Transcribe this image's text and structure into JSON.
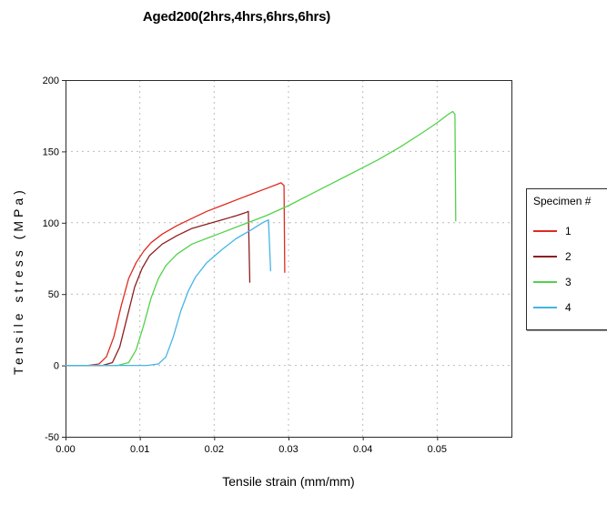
{
  "chart_data": {
    "type": "line",
    "title": "Aged200(2hrs,4hrs,6hrs,6hrs)",
    "xlabel": "Tensile strain (mm/mm)",
    "ylabel": "Tensile stress (MPa)",
    "xlim": [
      0,
      0.06
    ],
    "ylim": [
      -50,
      200
    ],
    "x_ticks": [
      0,
      0.01,
      0.02,
      0.03,
      0.04,
      0.05
    ],
    "x_tick_labels": [
      "0.00",
      "0.01",
      "0.02",
      "0.03",
      "0.04",
      "0.05"
    ],
    "y_ticks": [
      -50,
      0,
      50,
      100,
      150,
      200
    ],
    "y_tick_labels": [
      "-50",
      "0",
      "50",
      "100",
      "150",
      "200"
    ],
    "grid": true,
    "legend_title": "Specimen #",
    "legend_position": "right",
    "series": [
      {
        "name": "1",
        "color": "#df2a20",
        "points": [
          [
            0,
            0
          ],
          [
            0.003,
            0
          ],
          [
            0.0045,
            1
          ],
          [
            0.0055,
            6
          ],
          [
            0.0065,
            20
          ],
          [
            0.0075,
            42
          ],
          [
            0.0085,
            61
          ],
          [
            0.0095,
            72
          ],
          [
            0.0105,
            80
          ],
          [
            0.0115,
            86
          ],
          [
            0.013,
            92
          ],
          [
            0.015,
            98
          ],
          [
            0.017,
            103
          ],
          [
            0.019,
            108
          ],
          [
            0.021,
            112
          ],
          [
            0.023,
            116
          ],
          [
            0.025,
            120
          ],
          [
            0.027,
            124
          ],
          [
            0.0285,
            127
          ],
          [
            0.029,
            128
          ],
          [
            0.0294,
            126
          ],
          [
            0.0295,
            65
          ]
        ]
      },
      {
        "name": "2",
        "color": "#8e1f1f",
        "points": [
          [
            0,
            0
          ],
          [
            0.005,
            0
          ],
          [
            0.0063,
            2
          ],
          [
            0.0073,
            13
          ],
          [
            0.0083,
            34
          ],
          [
            0.0093,
            55
          ],
          [
            0.0103,
            68
          ],
          [
            0.0113,
            77
          ],
          [
            0.013,
            85
          ],
          [
            0.015,
            91
          ],
          [
            0.017,
            96
          ],
          [
            0.019,
            99
          ],
          [
            0.021,
            102
          ],
          [
            0.023,
            105
          ],
          [
            0.0242,
            107
          ],
          [
            0.0246,
            108
          ],
          [
            0.0248,
            58
          ]
        ]
      },
      {
        "name": "3",
        "color": "#52d24a",
        "points": [
          [
            0,
            0
          ],
          [
            0.007,
            0
          ],
          [
            0.0085,
            2
          ],
          [
            0.0095,
            11
          ],
          [
            0.0105,
            28
          ],
          [
            0.0115,
            47
          ],
          [
            0.0125,
            61
          ],
          [
            0.0135,
            70
          ],
          [
            0.015,
            78
          ],
          [
            0.017,
            85
          ],
          [
            0.019,
            89
          ],
          [
            0.021,
            93
          ],
          [
            0.024,
            99
          ],
          [
            0.027,
            105
          ],
          [
            0.03,
            112
          ],
          [
            0.033,
            120
          ],
          [
            0.036,
            128
          ],
          [
            0.039,
            136
          ],
          [
            0.042,
            144
          ],
          [
            0.045,
            153
          ],
          [
            0.048,
            163
          ],
          [
            0.05,
            170
          ],
          [
            0.0515,
            176
          ],
          [
            0.0521,
            178
          ],
          [
            0.0524,
            176
          ],
          [
            0.0525,
            101
          ]
        ]
      },
      {
        "name": "4",
        "color": "#45b5e6",
        "points": [
          [
            0,
            0
          ],
          [
            0.011,
            0
          ],
          [
            0.0125,
            1
          ],
          [
            0.0135,
            6
          ],
          [
            0.0145,
            20
          ],
          [
            0.0155,
            38
          ],
          [
            0.0165,
            52
          ],
          [
            0.0175,
            62
          ],
          [
            0.019,
            72
          ],
          [
            0.021,
            81
          ],
          [
            0.023,
            89
          ],
          [
            0.025,
            95
          ],
          [
            0.0265,
            100
          ],
          [
            0.0273,
            102
          ],
          [
            0.0276,
            66
          ]
        ]
      }
    ]
  }
}
